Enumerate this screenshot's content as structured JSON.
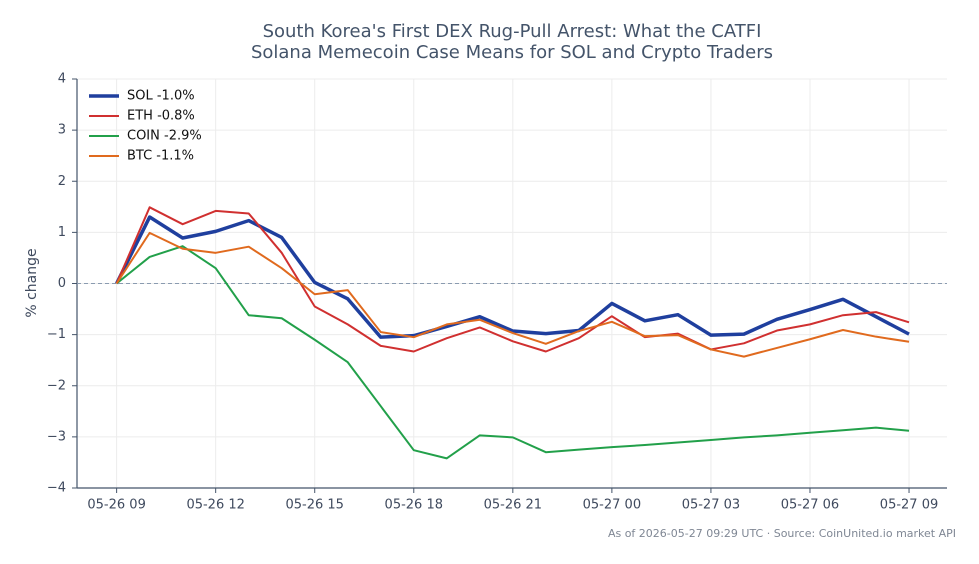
{
  "chart_data": {
    "type": "line",
    "title": [
      "South Korea's First DEX Rug-Pull Arrest: What the CATFI",
      "Solana Memecoin Case Means for SOL and Crypto Traders"
    ],
    "y_label": "% change",
    "footnote": "As of 2026-05-27 09:29 UTC · Source: CoinUnited.io market API",
    "x": [
      0,
      1,
      2,
      3,
      4,
      5,
      6,
      7,
      8,
      9,
      10,
      11,
      12,
      13,
      14,
      15,
      16,
      17,
      18,
      19,
      20,
      21,
      22,
      23,
      24
    ],
    "xlim": [
      -1.2,
      25.15
    ],
    "xticks": [
      {
        "value": 0,
        "label": "05-26 09"
      },
      {
        "value": 3,
        "label": "05-26 12"
      },
      {
        "value": 6,
        "label": "05-26 15"
      },
      {
        "value": 9,
        "label": "05-26 18"
      },
      {
        "value": 12,
        "label": "05-26 21"
      },
      {
        "value": 15,
        "label": "05-27 00"
      },
      {
        "value": 18,
        "label": "05-27 03"
      },
      {
        "value": 21,
        "label": "05-27 06"
      },
      {
        "value": 24,
        "label": "05-27 09"
      }
    ],
    "ylim": [
      -4,
      4
    ],
    "yticks": [
      {
        "value": -4,
        "label": "−4"
      },
      {
        "value": -3,
        "label": "−3"
      },
      {
        "value": -2,
        "label": "−2"
      },
      {
        "value": -1,
        "label": "−1"
      },
      0,
      1,
      2,
      3,
      4
    ],
    "grid": true,
    "reference_line": 0,
    "legend": "upper left",
    "series": [
      {
        "name": "SOL -1.0%",
        "color": "#1f3f9e",
        "line_width": 3.5,
        "values": [
          0,
          1.3,
          0.89,
          1.02,
          1.23,
          0.9,
          0.02,
          -0.3,
          -1.05,
          -1.02,
          -0.84,
          -0.65,
          -0.93,
          -0.98,
          -0.92,
          -0.39,
          -0.73,
          -0.61,
          -1.01,
          -0.99,
          -0.7,
          -0.51,
          -0.31,
          -0.65,
          -0.99
        ]
      },
      {
        "name": "ETH -0.8%",
        "color": "#d03030",
        "line_width": 2,
        "values": [
          0,
          1.49,
          1.16,
          1.42,
          1.37,
          0.6,
          -0.45,
          -0.8,
          -1.22,
          -1.33,
          -1.07,
          -0.86,
          -1.13,
          -1.33,
          -1.07,
          -0.64,
          -1.05,
          -0.98,
          -1.29,
          -1.17,
          -0.92,
          -0.8,
          -0.62,
          -0.56,
          -0.76
        ]
      },
      {
        "name": "COIN -2.9%",
        "color": "#22a04a",
        "line_width": 2,
        "values": [
          0,
          0.52,
          0.73,
          0.3,
          -0.62,
          -0.68,
          -1.1,
          -1.54,
          -2.4,
          -3.26,
          -3.42,
          -2.97,
          -3.01,
          -3.3,
          -3.25,
          -3.2,
          -3.16,
          -3.11,
          -3.06,
          -3.01,
          -2.97,
          -2.92,
          -2.87,
          -2.82,
          -2.88
        ]
      },
      {
        "name": "BTC -1.1%",
        "color": "#e06a1e",
        "line_width": 2,
        "values": [
          0,
          0.99,
          0.68,
          0.6,
          0.72,
          0.3,
          -0.21,
          -0.13,
          -0.95,
          -1.05,
          -0.8,
          -0.71,
          -0.97,
          -1.18,
          -0.93,
          -0.75,
          -1.03,
          -1.01,
          -1.29,
          -1.43,
          -1.26,
          -1.09,
          -0.91,
          -1.04,
          -1.14
        ]
      }
    ]
  }
}
